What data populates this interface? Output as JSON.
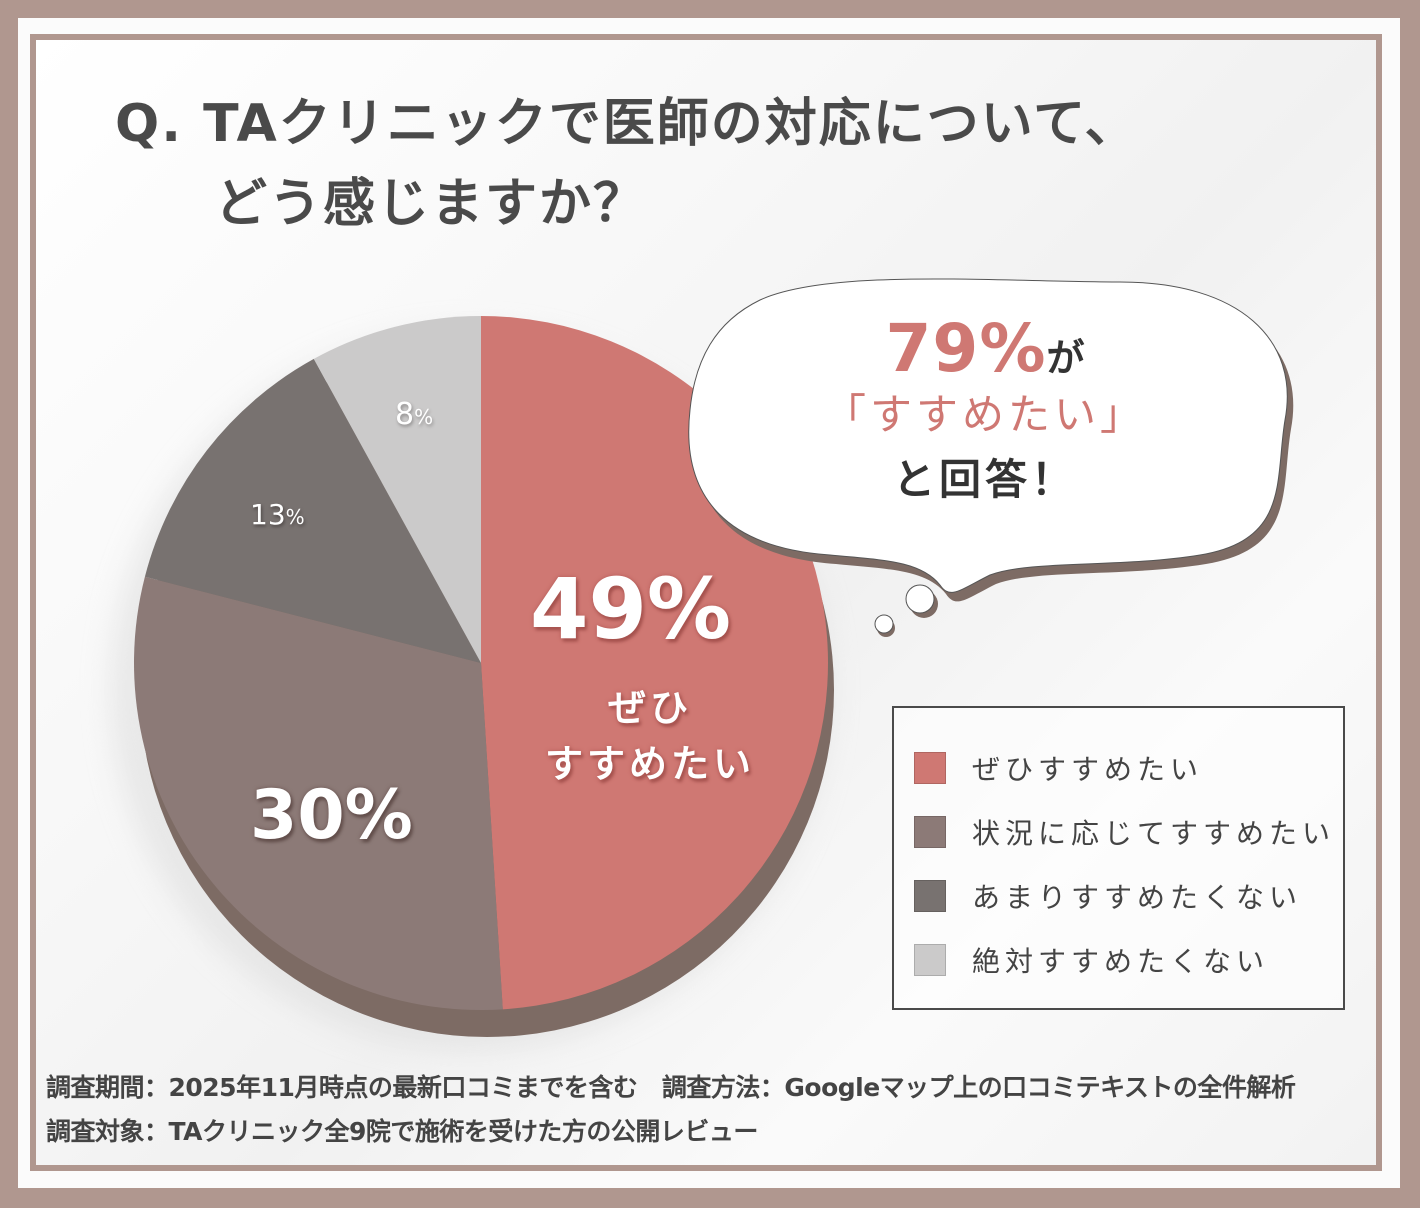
{
  "title": {
    "line1": "Q. TAクリニックで医師の対応について、",
    "line2": "どう感じますか？"
  },
  "chart_data": {
    "type": "pie",
    "title": "Q. TAクリニックで医師の対応について、どう感じますか？",
    "categories": [
      "ぜひすすめたい",
      "状況に応じてすすめたい",
      "あまりすすめたくない",
      "絶対すすめたくない"
    ],
    "values": [
      49,
      30,
      13,
      8
    ],
    "unit": "%",
    "colors": [
      "#CF7873",
      "#8C7A77",
      "#787270",
      "#CBCACA"
    ],
    "start_angle": "12 o'clock, clockwise",
    "legend_position": "right"
  },
  "slice_labels": {
    "s49_value": "49%",
    "s49_line1": "ぜひ",
    "s49_line2": "すすめたい",
    "s30_value": "30%",
    "s13_num": "13",
    "s13_pct": "%",
    "s8_num": "8",
    "s8_pct": "%"
  },
  "callout": {
    "percent": "79%",
    "particle": "が",
    "quote": "「すすめたい」",
    "tail": "と回答！"
  },
  "legend": {
    "items": [
      {
        "label": "ぜひすすめたい",
        "color": "#CF7873"
      },
      {
        "label": "状況に応じてすすめたい",
        "color": "#8C7A77"
      },
      {
        "label": "あまりすすめたくない",
        "color": "#787270"
      },
      {
        "label": "絶対すすめたくない",
        "color": "#CBCACA"
      }
    ]
  },
  "footer": {
    "line1": "調査期間：2025年11月時点の最新口コミまでを含む　調査方法：Googleマップ上の口コミテキストの全件解析",
    "line2": "調査対象：TAクリニック全9院で施術を受けた方の公開レビュー"
  },
  "colors": {
    "frame": "#B0978F",
    "text": "#4A4A4A",
    "accent": "#CF7873",
    "pie_extrusion": "#7D6B64"
  }
}
